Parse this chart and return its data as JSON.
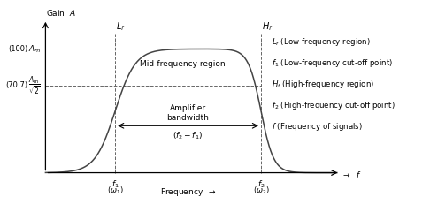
{
  "gain_label": "Gain  A",
  "Am": 100,
  "Am_sqrt2": 70.7,
  "f1": 0.22,
  "f2": 0.68,
  "xmin": 0.0,
  "xmax": 0.92,
  "ymin": -18,
  "ymax": 118,
  "curve_color": "#444444",
  "dashed_color": "#666666",
  "background_color": "#ffffff",
  "figsize": [
    4.86,
    2.23
  ],
  "dpi": 100,
  "legend_items": [
    "$L_f$ (Low-frequency region)",
    "$f_1$ (Low-frequency cut-off point)",
    "$H_f$ (High-frequency region)",
    "$f_2$ (High-frequency cut-off point)",
    "$f$ (Frequency of signals)"
  ]
}
